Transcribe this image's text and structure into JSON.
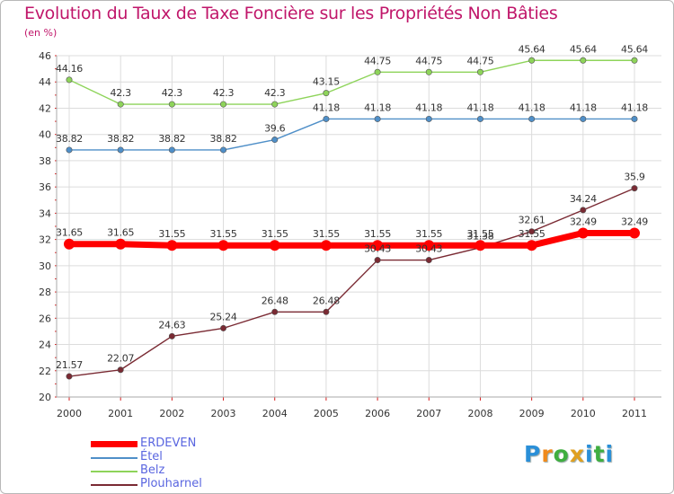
{
  "header": {
    "title": "Evolution du Taux de Taxe Foncière sur les Propriétés Non Bâties",
    "unit": "(en %)"
  },
  "chart_data": {
    "type": "line",
    "title": "Evolution du Taux de Taxe Foncière sur les Propriétés Non Bâties",
    "ylabel": "(en %)",
    "xlabel": "",
    "categories": [
      "2000",
      "2001",
      "2002",
      "2003",
      "2004",
      "2005",
      "2006",
      "2007",
      "2008",
      "2009",
      "2010",
      "2011"
    ],
    "ylim": [
      20,
      46
    ],
    "yticks": [
      "20",
      "22",
      "24",
      "26",
      "28",
      "30",
      "32",
      "34",
      "36",
      "38",
      "40",
      "42",
      "44",
      "46"
    ],
    "grid": true,
    "series": [
      {
        "name": "ERDEVEN",
        "color": "#ff0000",
        "values": [
          31.65,
          31.65,
          31.55,
          31.55,
          31.55,
          31.55,
          31.55,
          31.55,
          31.55,
          31.55,
          32.49,
          32.49
        ],
        "labels": [
          "31.65",
          "31.65",
          "31.55",
          "31.55",
          "31.55",
          "31.55",
          "31.55",
          "31.55",
          "31.55",
          "31.55",
          "32.49",
          "32.49"
        ]
      },
      {
        "name": "Étel",
        "color": "#4f8fc8",
        "values": [
          38.82,
          38.82,
          38.82,
          38.82,
          39.6,
          41.18,
          41.18,
          41.18,
          41.18,
          41.18,
          41.18,
          41.18
        ],
        "labels": [
          "38.82",
          "38.82",
          "38.82",
          "38.82",
          "39.6",
          "41.18",
          "41.18",
          "41.18",
          "41.18",
          "41.18",
          "41.18",
          "41.18"
        ]
      },
      {
        "name": "Belz",
        "color": "#8ed45a",
        "values": [
          44.16,
          42.3,
          42.3,
          42.3,
          42.3,
          43.15,
          44.75,
          44.75,
          44.75,
          45.64,
          45.64,
          45.64
        ],
        "labels": [
          "44.16",
          "42.3",
          "42.3",
          "42.3",
          "42.3",
          "43.15",
          "44.75",
          "44.75",
          "44.75",
          "45.64",
          "45.64",
          "45.64"
        ]
      },
      {
        "name": "Plouharnel",
        "color": "#7a2a33",
        "values": [
          21.57,
          22.07,
          24.63,
          25.24,
          26.48,
          26.48,
          30.43,
          30.43,
          31.38,
          32.61,
          34.24,
          35.9
        ],
        "labels": [
          "21.57",
          "22.07",
          "24.63",
          "25.24",
          "26.48",
          "26.48",
          "30.43",
          "30.43",
          "31.38",
          "32.61",
          "34.24",
          "35.9"
        ]
      }
    ]
  },
  "legend": {
    "items": [
      {
        "label": "ERDEVEN",
        "color": "#ff0000"
      },
      {
        "label": "Étel",
        "color": "#4f8fc8"
      },
      {
        "label": "Belz",
        "color": "#8ed45a"
      },
      {
        "label": "Plouharnel",
        "color": "#7a2a33"
      }
    ]
  },
  "logo": {
    "letters": [
      "P",
      "r",
      "o",
      "x",
      "i",
      "t",
      "i"
    ],
    "colors": [
      "#2a8fd8",
      "#f08a1c",
      "#3fae3f",
      "#e0a020",
      "#2a8fd8",
      "#3fae3f",
      "#2a8fd8"
    ]
  }
}
